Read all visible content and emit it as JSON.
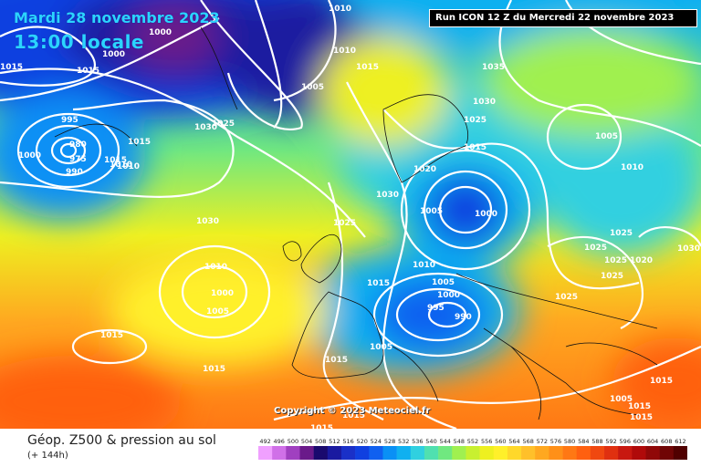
{
  "header": {
    "date": "Mardi 28 novembre 2023",
    "local_time": "13:00 locale",
    "run": "Run ICON 12 Z du Mercredi 22 novembre 2023"
  },
  "copyright": "Copyright © 2023 Meteociel.fr",
  "footer": {
    "title": "Géop. Z500 & pression au sol",
    "subtitle": "(+ 144h)"
  },
  "colorbar": {
    "ticks": [
      "492",
      "496",
      "500",
      "504",
      "508",
      "512",
      "516",
      "520",
      "524",
      "528",
      "532",
      "536",
      "540",
      "544",
      "548",
      "552",
      "556",
      "560",
      "564",
      "568",
      "572",
      "576",
      "580",
      "584",
      "588",
      "592",
      "596",
      "600",
      "604",
      "608",
      "612"
    ],
    "colors": [
      "#f0a0ff",
      "#d070e8",
      "#a040c0",
      "#6a1a8a",
      "#1a0a6e",
      "#1a1aa0",
      "#1a30c8",
      "#1040e0",
      "#1060f0",
      "#0a90f5",
      "#10b0f0",
      "#30d0e0",
      "#50e0b0",
      "#70e880",
      "#a0f050",
      "#c8f030",
      "#eef020",
      "#fff02a",
      "#ffd82a",
      "#ffc02a",
      "#ffa820",
      "#ff9018",
      "#ff7814",
      "#ff6010",
      "#f04810",
      "#e03010",
      "#c81810",
      "#b00a0a",
      "#900808",
      "#700505",
      "#500000"
    ]
  },
  "isobars": [
    "1000",
    "1015",
    "1010",
    "1000",
    "1015",
    "1010",
    "1015",
    "1005",
    "1035",
    "995",
    "1030",
    "1025",
    "1015",
    "1030",
    "1025",
    "1015",
    "1000",
    "980",
    "975",
    "990",
    "1015",
    "1010",
    "1005",
    "1020",
    "1030",
    "1010",
    "1025",
    "1005",
    "1000",
    "1030",
    "1025",
    "1025",
    "1020",
    "1025",
    "1030",
    "1010",
    "1005",
    "1000",
    "1015",
    "1005",
    "1000",
    "995",
    "990",
    "1015",
    "1015",
    "1025",
    "1025",
    "1015",
    "1005",
    "1015",
    "1005",
    "1015",
    "1015",
    "1015",
    "1015",
    "1010",
    "1010"
  ]
}
